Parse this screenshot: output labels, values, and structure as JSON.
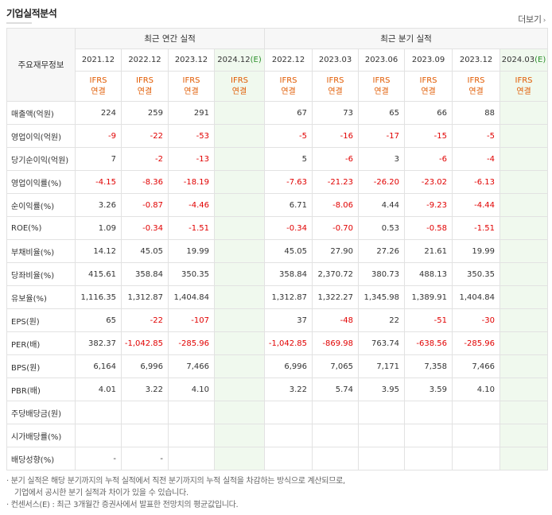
{
  "section_title": "기업실적분석",
  "more_label": "더보기",
  "annual_group": "최근 연간 실적",
  "quarter_group": "최근 분기 실적",
  "row_header": "주요재무정보",
  "annual_periods": [
    {
      "label": "2021.12",
      "est": false
    },
    {
      "label": "2022.12",
      "est": false
    },
    {
      "label": "2023.12",
      "est": false
    },
    {
      "label": "2024.12",
      "est": true
    }
  ],
  "quarter_periods": [
    {
      "label": "2022.12",
      "est": false
    },
    {
      "label": "2023.03",
      "est": false
    },
    {
      "label": "2023.06",
      "est": false
    },
    {
      "label": "2023.09",
      "est": false
    },
    {
      "label": "2023.12",
      "est": false
    },
    {
      "label": "2024.03",
      "est": true
    }
  ],
  "est_mark": "(E)",
  "ifrs_label": "IFRS",
  "consolidated_label": "연결",
  "rows": [
    {
      "label": "매출액(억원)",
      "sep": false,
      "annual": [
        "224",
        "259",
        "291",
        ""
      ],
      "quarter": [
        "67",
        "73",
        "65",
        "66",
        "88",
        ""
      ]
    },
    {
      "label": "영업이익(억원)",
      "sep": false,
      "annual": [
        "-9",
        "-22",
        "-53",
        ""
      ],
      "quarter": [
        "-5",
        "-16",
        "-17",
        "-15",
        "-5",
        ""
      ]
    },
    {
      "label": "당기순이익(억원)",
      "sep": false,
      "annual": [
        "7",
        "-2",
        "-13",
        ""
      ],
      "quarter": [
        "5",
        "-6",
        "3",
        "-6",
        "-4",
        ""
      ]
    },
    {
      "label": "영업이익률(%)",
      "sep": true,
      "annual": [
        "-4.15",
        "-8.36",
        "-18.19",
        ""
      ],
      "quarter": [
        "-7.63",
        "-21.23",
        "-26.20",
        "-23.02",
        "-6.13",
        ""
      ]
    },
    {
      "label": "순이익률(%)",
      "sep": false,
      "annual": [
        "3.26",
        "-0.87",
        "-4.46",
        ""
      ],
      "quarter": [
        "6.71",
        "-8.06",
        "4.44",
        "-9.23",
        "-4.44",
        ""
      ]
    },
    {
      "label": "ROE(%)",
      "sep": false,
      "annual": [
        "1.09",
        "-0.34",
        "-1.51",
        ""
      ],
      "quarter": [
        "-0.34",
        "-0.70",
        "0.53",
        "-0.58",
        "-1.51",
        ""
      ]
    },
    {
      "label": "부채비율(%)",
      "sep": true,
      "annual": [
        "14.12",
        "45.05",
        "19.99",
        ""
      ],
      "quarter": [
        "45.05",
        "27.90",
        "27.26",
        "21.61",
        "19.99",
        ""
      ]
    },
    {
      "label": "당좌비율(%)",
      "sep": false,
      "annual": [
        "415.61",
        "358.84",
        "350.35",
        ""
      ],
      "quarter": [
        "358.84",
        "2,370.72",
        "380.73",
        "488.13",
        "350.35",
        ""
      ]
    },
    {
      "label": "유보율(%)",
      "sep": false,
      "annual": [
        "1,116.35",
        "1,312.87",
        "1,404.84",
        ""
      ],
      "quarter": [
        "1,312.87",
        "1,322.27",
        "1,345.98",
        "1,389.91",
        "1,404.84",
        ""
      ]
    },
    {
      "label": "EPS(원)",
      "sep": true,
      "annual": [
        "65",
        "-22",
        "-107",
        ""
      ],
      "quarter": [
        "37",
        "-48",
        "22",
        "-51",
        "-30",
        ""
      ]
    },
    {
      "label": "PER(배)",
      "sep": false,
      "annual": [
        "382.37",
        "-1,042.85",
        "-285.96",
        ""
      ],
      "quarter": [
        "-1,042.85",
        "-869.98",
        "763.74",
        "-638.56",
        "-285.96",
        ""
      ]
    },
    {
      "label": "BPS(원)",
      "sep": false,
      "annual": [
        "6,164",
        "6,996",
        "7,466",
        ""
      ],
      "quarter": [
        "6,996",
        "7,065",
        "7,171",
        "7,358",
        "7,466",
        ""
      ]
    },
    {
      "label": "PBR(배)",
      "sep": false,
      "annual": [
        "4.01",
        "3.22",
        "4.10",
        ""
      ],
      "quarter": [
        "3.22",
        "5.74",
        "3.95",
        "3.59",
        "4.10",
        ""
      ]
    },
    {
      "label": "주당배당금(원)",
      "sep": true,
      "annual": [
        "",
        "",
        "",
        ""
      ],
      "quarter": [
        "",
        "",
        "",
        "",
        "",
        ""
      ]
    },
    {
      "label": "시가배당률(%)",
      "sep": false,
      "annual": [
        "",
        "",
        "",
        ""
      ],
      "quarter": [
        "",
        "",
        "",
        "",
        "",
        ""
      ]
    },
    {
      "label": "배당성향(%)",
      "sep": false,
      "annual": [
        "-",
        "-",
        "",
        ""
      ],
      "quarter": [
        "",
        "",
        "",
        "",
        "",
        ""
      ]
    }
  ],
  "notes": [
    "· 분기 실적은 해당 분기까지의 누적 실적에서 직전 분기까지의 누적 실적을 차감하는 방식으로 계산되므로,",
    "  기업에서 공시한 분기 실적과 차이가 있을 수 있습니다.",
    "· 컨센서스(E) : 최근 3개월간 증권사에서 발표한 전망치의 평균값입니다."
  ],
  "colors": {
    "negative": "#e10000",
    "ifrs": "#e15a00",
    "estimate_bg": "#f0f9ee",
    "estimate_mark": "#2a8f2a"
  }
}
